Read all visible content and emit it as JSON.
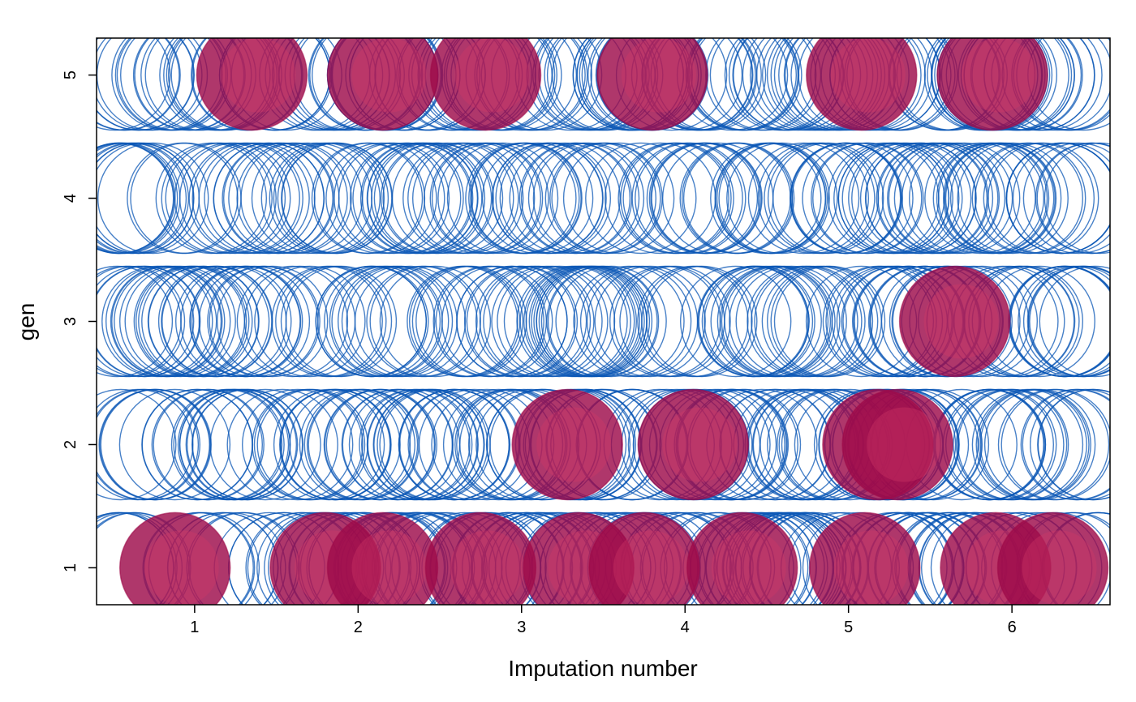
{
  "chart_data": {
    "type": "scatter",
    "title": "",
    "xlabel": "Imputation number",
    "ylabel": "gen",
    "xlim": [
      0.4,
      6.6
    ],
    "ylim": [
      0.7,
      5.3
    ],
    "x_ticks": [
      "1",
      "2",
      "3",
      "4",
      "5",
      "6"
    ],
    "y_ticks": [
      "1",
      "2",
      "3",
      "4",
      "5"
    ],
    "grid": false,
    "legend": "none",
    "colors": {
      "observed": "#0B57B5",
      "imputed": "#9E0B4A",
      "imputed_highlight": "#D23A68"
    },
    "observed_x_range": [
      0.5,
      6.55
    ],
    "imputed_points": [
      {
        "x": 1.35,
        "y": 5
      },
      {
        "x": 2.15,
        "y": 5
      },
      {
        "x": 2.78,
        "y": 5
      },
      {
        "x": 3.8,
        "y": 5
      },
      {
        "x": 5.08,
        "y": 5
      },
      {
        "x": 5.88,
        "y": 5
      },
      {
        "x": 5.65,
        "y": 3
      },
      {
        "x": 3.28,
        "y": 2
      },
      {
        "x": 4.05,
        "y": 2
      },
      {
        "x": 5.18,
        "y": 2
      },
      {
        "x": 5.3,
        "y": 2
      },
      {
        "x": 0.88,
        "y": 1
      },
      {
        "x": 1.8,
        "y": 1
      },
      {
        "x": 2.15,
        "y": 1
      },
      {
        "x": 2.75,
        "y": 1
      },
      {
        "x": 3.35,
        "y": 1
      },
      {
        "x": 3.75,
        "y": 1
      },
      {
        "x": 4.35,
        "y": 1
      },
      {
        "x": 5.1,
        "y": 1
      },
      {
        "x": 5.9,
        "y": 1
      },
      {
        "x": 6.25,
        "y": 1
      }
    ]
  }
}
